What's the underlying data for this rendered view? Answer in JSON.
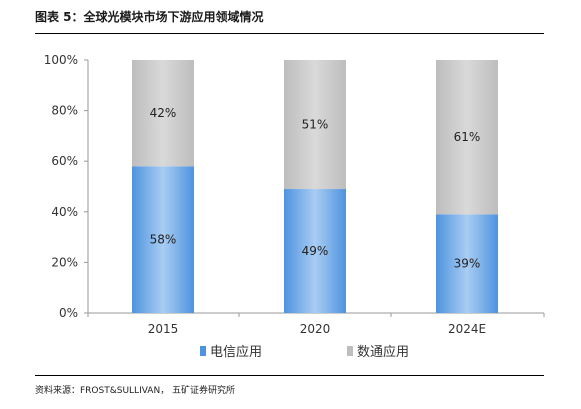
{
  "header": {
    "title": "图表 5：全球光模块市场下游应用领域情况"
  },
  "footer": {
    "source": "资料来源：FROST&SULLIVAN，  五矿证券研究所"
  },
  "colors": {
    "telecom": "#4f93de",
    "telecom_light": "#a9cdf3",
    "datacom": "#bdbdbd",
    "datacom_light": "#d9d9d9",
    "axis": "#9a9a9a"
  },
  "chart_data": {
    "type": "bar",
    "stacked": true,
    "categories": [
      "2015",
      "2020",
      "2024E"
    ],
    "series": [
      {
        "name": "电信应用",
        "values": [
          58,
          49,
          39
        ],
        "labels": [
          "58%",
          "49%",
          "39%"
        ]
      },
      {
        "name": "数通应用",
        "values": [
          42,
          51,
          61
        ],
        "labels": [
          "42%",
          "51%",
          "61%"
        ]
      }
    ],
    "ylim": [
      0,
      100
    ],
    "yticks": [
      0,
      20,
      40,
      60,
      80,
      100
    ],
    "ytick_labels": [
      "0%",
      "20%",
      "40%",
      "60%",
      "80%",
      "100%"
    ],
    "xlabel": "",
    "ylabel": "",
    "grid": false,
    "legend_position": "bottom"
  }
}
